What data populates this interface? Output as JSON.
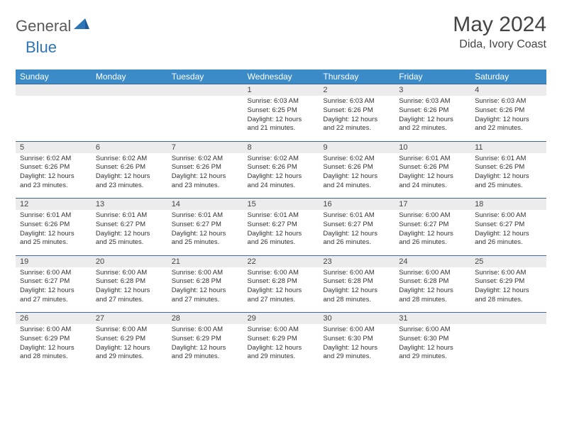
{
  "brand": {
    "part1": "General",
    "part2": "Blue"
  },
  "title": {
    "month": "May 2024",
    "location": "Dida, Ivory Coast"
  },
  "colors": {
    "header_bg": "#3b8bc9",
    "header_text": "#ffffff",
    "daynum_bg": "#ececec",
    "rule": "#3b6a9a",
    "brand_gray": "#5a5a5a",
    "brand_blue": "#2e75b6"
  },
  "daysOfWeek": [
    "Sunday",
    "Monday",
    "Tuesday",
    "Wednesday",
    "Thursday",
    "Friday",
    "Saturday"
  ],
  "weeks": [
    [
      null,
      null,
      null,
      {
        "d": "1",
        "sr": "6:03 AM",
        "ss": "6:25 PM",
        "dl": "12 hours and 21 minutes."
      },
      {
        "d": "2",
        "sr": "6:03 AM",
        "ss": "6:26 PM",
        "dl": "12 hours and 22 minutes."
      },
      {
        "d": "3",
        "sr": "6:03 AM",
        "ss": "6:26 PM",
        "dl": "12 hours and 22 minutes."
      },
      {
        "d": "4",
        "sr": "6:03 AM",
        "ss": "6:26 PM",
        "dl": "12 hours and 22 minutes."
      }
    ],
    [
      {
        "d": "5",
        "sr": "6:02 AM",
        "ss": "6:26 PM",
        "dl": "12 hours and 23 minutes."
      },
      {
        "d": "6",
        "sr": "6:02 AM",
        "ss": "6:26 PM",
        "dl": "12 hours and 23 minutes."
      },
      {
        "d": "7",
        "sr": "6:02 AM",
        "ss": "6:26 PM",
        "dl": "12 hours and 23 minutes."
      },
      {
        "d": "8",
        "sr": "6:02 AM",
        "ss": "6:26 PM",
        "dl": "12 hours and 24 minutes."
      },
      {
        "d": "9",
        "sr": "6:02 AM",
        "ss": "6:26 PM",
        "dl": "12 hours and 24 minutes."
      },
      {
        "d": "10",
        "sr": "6:01 AM",
        "ss": "6:26 PM",
        "dl": "12 hours and 24 minutes."
      },
      {
        "d": "11",
        "sr": "6:01 AM",
        "ss": "6:26 PM",
        "dl": "12 hours and 25 minutes."
      }
    ],
    [
      {
        "d": "12",
        "sr": "6:01 AM",
        "ss": "6:26 PM",
        "dl": "12 hours and 25 minutes."
      },
      {
        "d": "13",
        "sr": "6:01 AM",
        "ss": "6:27 PM",
        "dl": "12 hours and 25 minutes."
      },
      {
        "d": "14",
        "sr": "6:01 AM",
        "ss": "6:27 PM",
        "dl": "12 hours and 25 minutes."
      },
      {
        "d": "15",
        "sr": "6:01 AM",
        "ss": "6:27 PM",
        "dl": "12 hours and 26 minutes."
      },
      {
        "d": "16",
        "sr": "6:01 AM",
        "ss": "6:27 PM",
        "dl": "12 hours and 26 minutes."
      },
      {
        "d": "17",
        "sr": "6:00 AM",
        "ss": "6:27 PM",
        "dl": "12 hours and 26 minutes."
      },
      {
        "d": "18",
        "sr": "6:00 AM",
        "ss": "6:27 PM",
        "dl": "12 hours and 26 minutes."
      }
    ],
    [
      {
        "d": "19",
        "sr": "6:00 AM",
        "ss": "6:27 PM",
        "dl": "12 hours and 27 minutes."
      },
      {
        "d": "20",
        "sr": "6:00 AM",
        "ss": "6:28 PM",
        "dl": "12 hours and 27 minutes."
      },
      {
        "d": "21",
        "sr": "6:00 AM",
        "ss": "6:28 PM",
        "dl": "12 hours and 27 minutes."
      },
      {
        "d": "22",
        "sr": "6:00 AM",
        "ss": "6:28 PM",
        "dl": "12 hours and 27 minutes."
      },
      {
        "d": "23",
        "sr": "6:00 AM",
        "ss": "6:28 PM",
        "dl": "12 hours and 28 minutes."
      },
      {
        "d": "24",
        "sr": "6:00 AM",
        "ss": "6:28 PM",
        "dl": "12 hours and 28 minutes."
      },
      {
        "d": "25",
        "sr": "6:00 AM",
        "ss": "6:29 PM",
        "dl": "12 hours and 28 minutes."
      }
    ],
    [
      {
        "d": "26",
        "sr": "6:00 AM",
        "ss": "6:29 PM",
        "dl": "12 hours and 28 minutes."
      },
      {
        "d": "27",
        "sr": "6:00 AM",
        "ss": "6:29 PM",
        "dl": "12 hours and 29 minutes."
      },
      {
        "d": "28",
        "sr": "6:00 AM",
        "ss": "6:29 PM",
        "dl": "12 hours and 29 minutes."
      },
      {
        "d": "29",
        "sr": "6:00 AM",
        "ss": "6:29 PM",
        "dl": "12 hours and 29 minutes."
      },
      {
        "d": "30",
        "sr": "6:00 AM",
        "ss": "6:30 PM",
        "dl": "12 hours and 29 minutes."
      },
      {
        "d": "31",
        "sr": "6:00 AM",
        "ss": "6:30 PM",
        "dl": "12 hours and 29 minutes."
      },
      null
    ]
  ],
  "labels": {
    "sunrise": "Sunrise:",
    "sunset": "Sunset:",
    "daylight": "Daylight:"
  }
}
